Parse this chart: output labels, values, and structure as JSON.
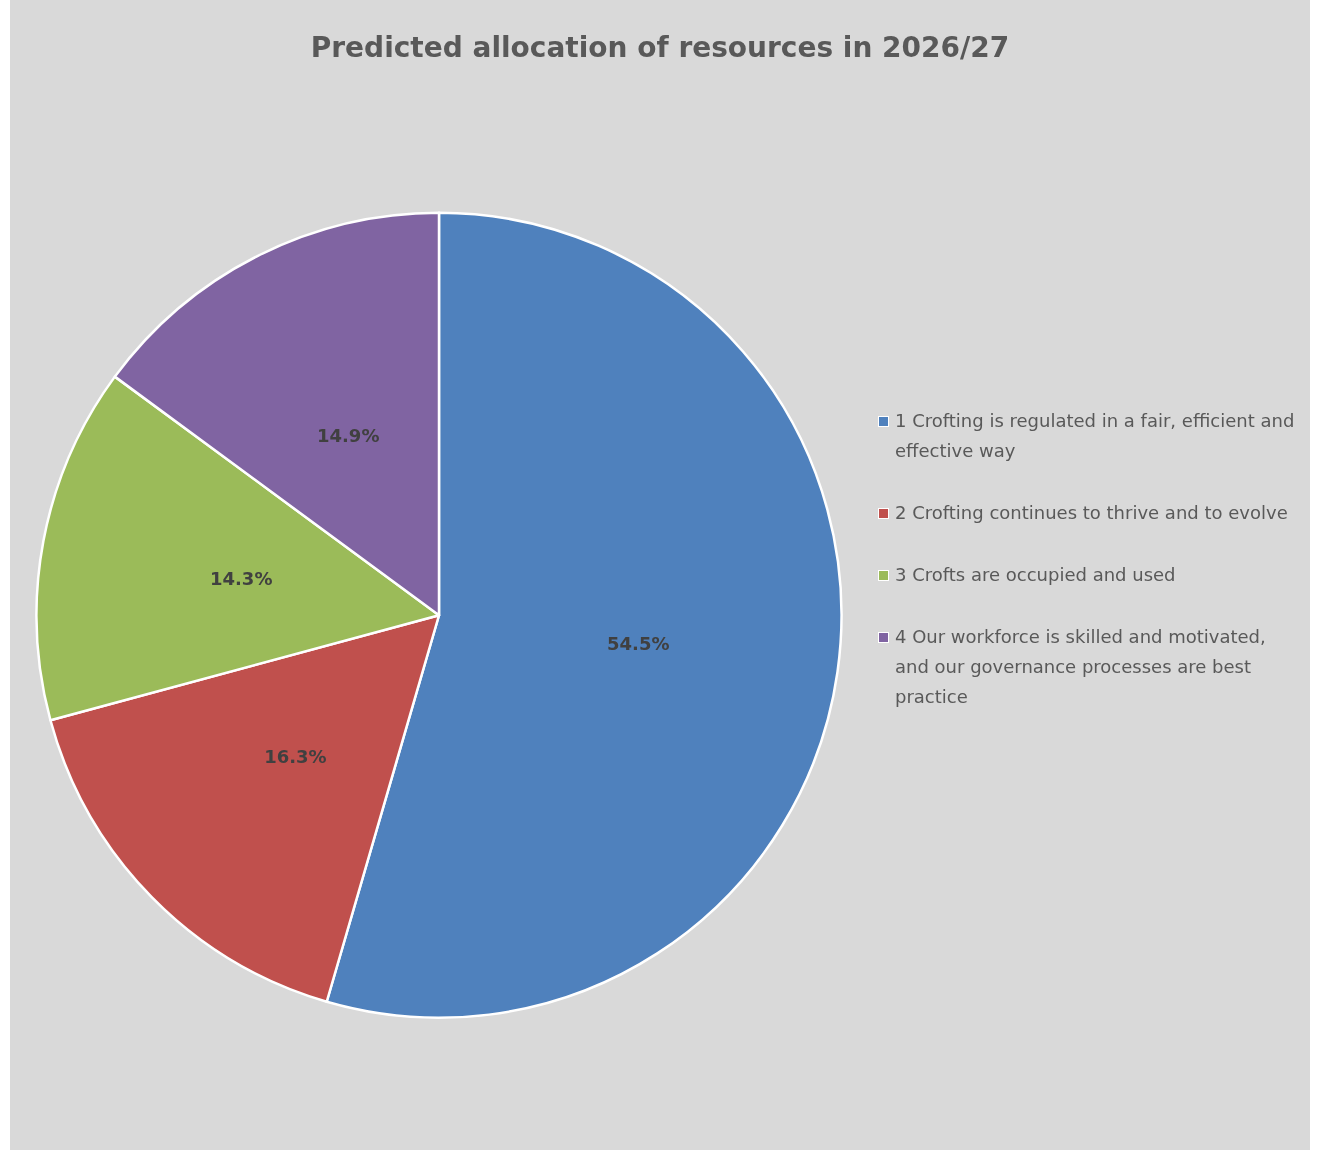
{
  "chart_data": {
    "type": "pie",
    "title": "Predicted allocation of resources in 2026/27",
    "categories": [
      "1 Crofting is regulated in a fair, efficient and effective way",
      "2 Crofting continues to thrive and to evolve",
      "3 Crofts are occupied and used",
      "4 Our workforce is skilled and motivated, and our governance processes are best practice"
    ],
    "values": [
      54.5,
      16.3,
      14.3,
      14.9
    ],
    "colors": [
      "#4f81bd",
      "#c0504d",
      "#9bbb59",
      "#8064a2"
    ],
    "value_labels": [
      "54.5%",
      "16.3%",
      "14.3%",
      "14.9%"
    ],
    "legend": "right"
  }
}
